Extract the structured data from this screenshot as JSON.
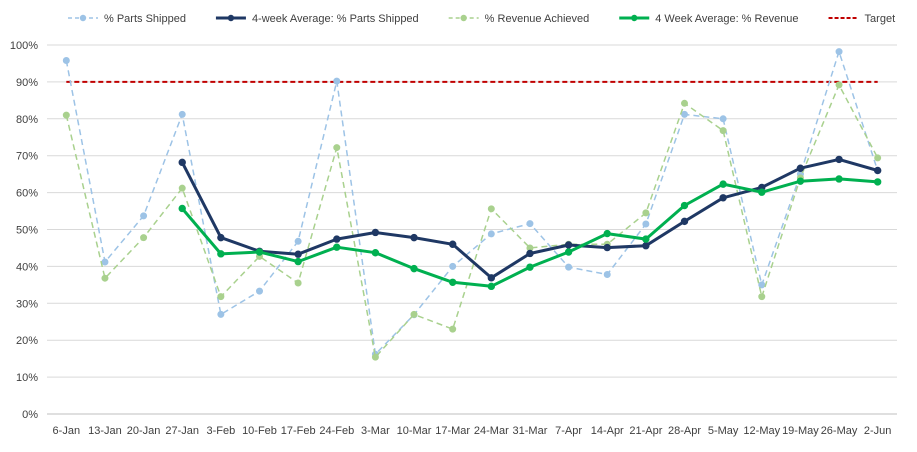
{
  "chart_data": {
    "type": "line",
    "title": "",
    "xlabel": "",
    "ylabel": "",
    "x": [
      "6-Jan",
      "13-Jan",
      "20-Jan",
      "27-Jan",
      "3-Feb",
      "10-Feb",
      "17-Feb",
      "24-Feb",
      "3-Mar",
      "10-Mar",
      "17-Mar",
      "24-Mar",
      "31-Mar",
      "7-Apr",
      "14-Apr",
      "21-Apr",
      "28-Apr",
      "5-May",
      "12-May",
      "19-May",
      "26-May",
      "2-Jun"
    ],
    "ylim": [
      0,
      100
    ],
    "y_ticks": [
      "0%",
      "10%",
      "20%",
      "30%",
      "40%",
      "50%",
      "60%",
      "70%",
      "80%",
      "90%",
      "100%"
    ],
    "grid": true,
    "legend_position": "top",
    "series": [
      {
        "name": "% Parts Shipped",
        "style": "dashed-marker",
        "color": "#9dc3e6",
        "values": [
          95.8,
          41.2,
          53.7,
          81.2,
          27.0,
          33.3,
          46.8,
          90.2,
          16.2,
          26.9,
          40.0,
          48.8,
          51.6,
          39.8,
          37.8,
          51.5,
          81.2,
          80.0,
          35.0,
          65.0,
          98.2,
          65.9
        ]
      },
      {
        "name": "4-week Average:  % Parts Shipped",
        "style": "solid-marker",
        "color": "#1f3864",
        "values": [
          null,
          null,
          null,
          68.2,
          47.8,
          44.1,
          43.3,
          47.4,
          49.2,
          47.8,
          46.0,
          36.9,
          43.5,
          45.8,
          45.1,
          45.6,
          52.2,
          58.6,
          61.4,
          66.6,
          69.0,
          66.0
        ]
      },
      {
        "name": "% Revenue Achieved",
        "style": "dashed-marker",
        "color": "#a9d18e",
        "values": [
          81.0,
          36.8,
          47.8,
          61.2,
          31.8,
          42.7,
          35.5,
          72.2,
          15.4,
          27.0,
          23.0,
          55.6,
          45.0,
          46.0,
          46.0,
          54.5,
          84.2,
          76.8,
          31.8,
          64.0,
          89.2,
          69.4
        ]
      },
      {
        "name": "4 Week Average:  % Revenue",
        "style": "solid-marker",
        "color": "#00b050",
        "values": [
          null,
          null,
          null,
          55.7,
          43.4,
          43.9,
          41.3,
          45.2,
          43.7,
          39.4,
          35.7,
          34.6,
          39.8,
          43.9,
          48.9,
          47.4,
          56.5,
          62.3,
          60.1,
          63.1,
          63.7,
          62.9
        ]
      },
      {
        "name": "Target",
        "style": "dashed",
        "color": "#c00000",
        "values": [
          90,
          90,
          90,
          90,
          90,
          90,
          90,
          90,
          90,
          90,
          90,
          90,
          90,
          90,
          90,
          90,
          90,
          90,
          90,
          90,
          90,
          90
        ]
      }
    ]
  }
}
